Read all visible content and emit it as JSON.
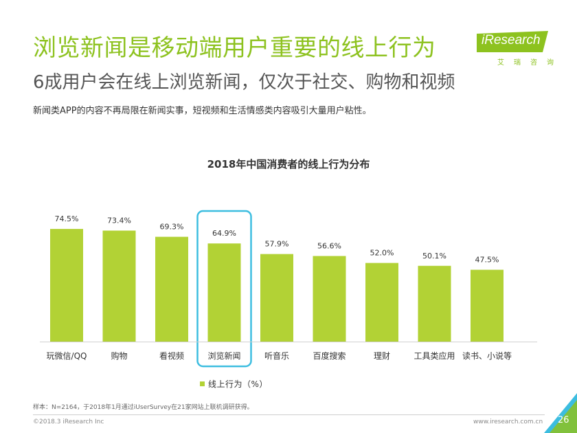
{
  "header": {
    "title": "浏览新闻是移动端用户重要的线上行为",
    "subtitle": "6成用户会在线上浏览新闻，仅次于社交、购物和视频",
    "description": "新闻类APP的内容不再局限在新闻实事，短视频和生活情感类内容吸引大量用户粘性。"
  },
  "logo": {
    "text": "iResearch",
    "cn": "艾瑞咨询",
    "color": "#8dc21f"
  },
  "chart_data": {
    "type": "bar",
    "title": "2018年中国消费者的线上行为分布",
    "categories": [
      "玩微信/QQ",
      "购物",
      "看视频",
      "浏览新闻",
      "听音乐",
      "百度搜索",
      "理财",
      "工具类应用",
      "读书、小说等"
    ],
    "values": [
      74.5,
      73.4,
      69.3,
      64.9,
      57.9,
      56.6,
      52.0,
      50.1,
      47.5
    ],
    "value_labels": [
      "74.5%",
      "73.4%",
      "69.3%",
      "64.9%",
      "57.9%",
      "56.6%",
      "52.0%",
      "50.1%",
      "47.5%"
    ],
    "series": [
      {
        "name": "线上行为（%）",
        "values": [
          74.5,
          73.4,
          69.3,
          64.9,
          57.9,
          56.6,
          52.0,
          50.1,
          47.5
        ]
      }
    ],
    "ylim": [
      0,
      80
    ],
    "grid": false,
    "legend_position": "bottom",
    "highlight_category": "浏览新闻",
    "bar_color": "#b2d235",
    "highlight_color": "#3cbde0"
  },
  "footer": {
    "note": "样本：N=2164，于2018年1月通过iUserSurvey在21家网站上联机调研获得。",
    "copyright": "©2018.3 iResearch Inc",
    "website": "www.iresearch.com.cn",
    "page_number": "26"
  }
}
